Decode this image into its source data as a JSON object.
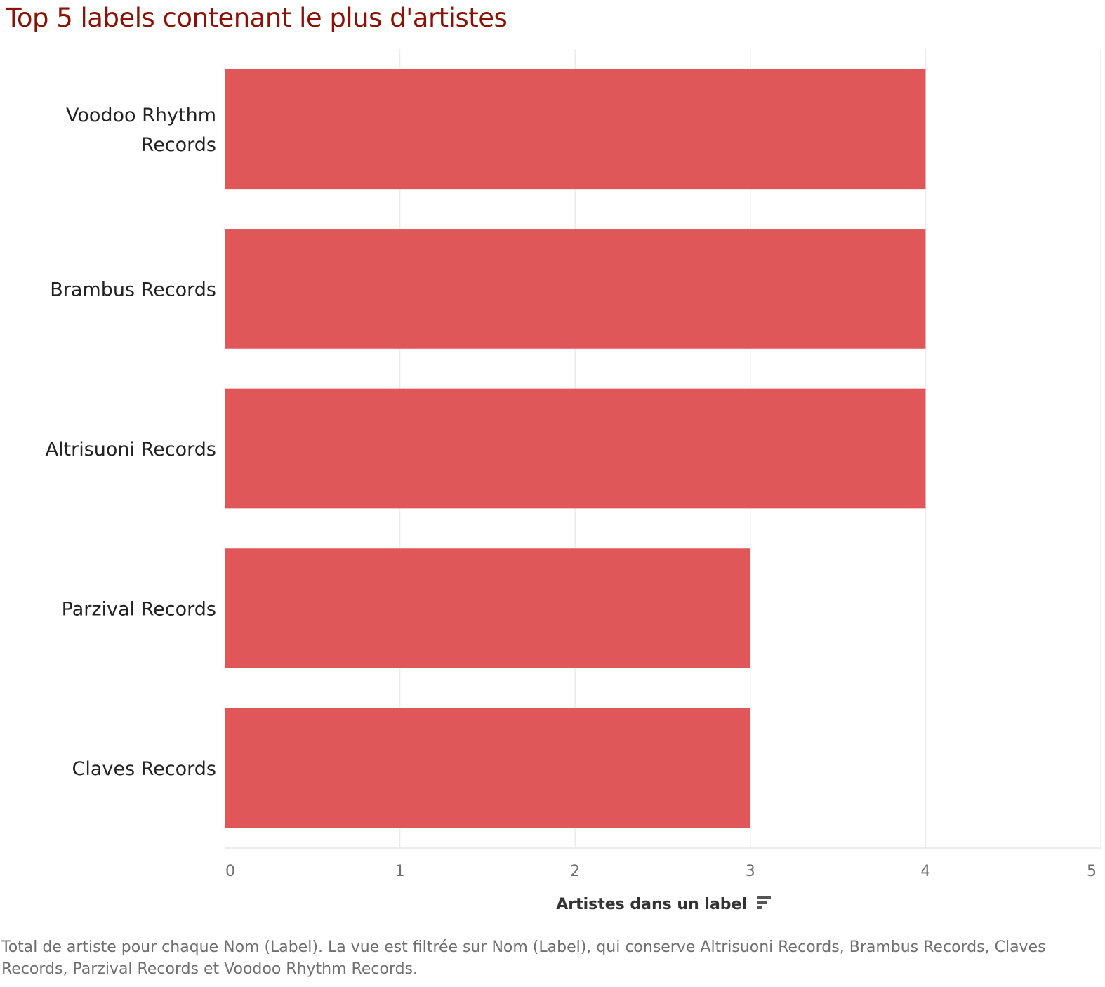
{
  "title": "Top 5 labels contenant le plus d'artistes",
  "caption": "Total de artiste pour chaque Nom (Label). La vue est filtrée sur Nom (Label), qui conserve Altrisuoni Records, Brambus Records, Claves Records, Parzival Records et Voodoo Rhythm Records.",
  "sort_icon": "sort-descending-icon",
  "chart_data": {
    "type": "bar",
    "orientation": "horizontal",
    "categories": [
      "Voodoo Rhythm Records",
      "Brambus Records",
      "Altrisuoni Records",
      "Parzival Records",
      "Claves Records"
    ],
    "category_display": [
      [
        "Voodoo Rhythm",
        "Records"
      ],
      [
        "Brambus Records"
      ],
      [
        "Altrisuoni Records"
      ],
      [
        "Parzival Records"
      ],
      [
        "Claves Records"
      ]
    ],
    "values": [
      4,
      4,
      4,
      3,
      3
    ],
    "xlabel": "Artistes dans un label",
    "ylabel": "",
    "xlim": [
      0,
      5
    ],
    "xticks": [
      0,
      1,
      2,
      3,
      4,
      5
    ],
    "grid": true,
    "bar_color": "#e05759",
    "grid_color": "#ececec",
    "axis_text_color": "#6f6f6f",
    "label_color": "#222222"
  }
}
